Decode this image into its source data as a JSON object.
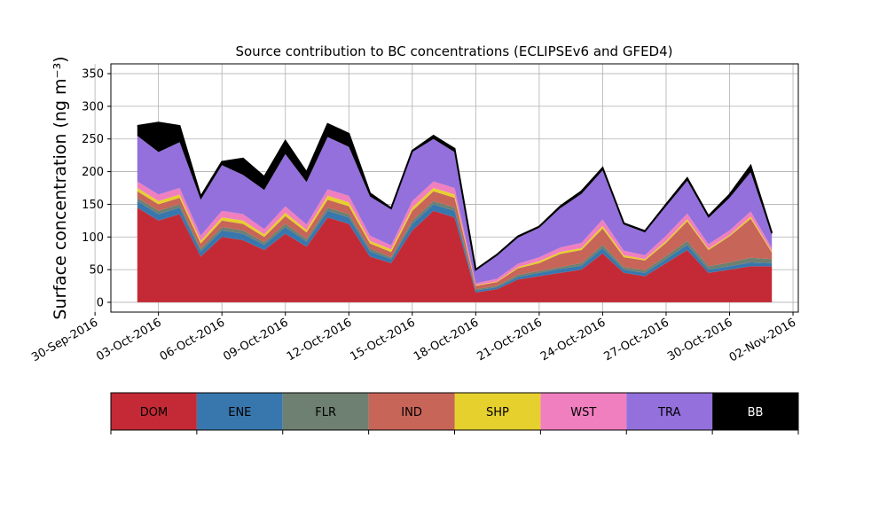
{
  "chart_data": {
    "type": "area",
    "stacked": true,
    "title": "Source contribution to BC concentrations (ECLIPSEv6 and GFED4)",
    "xlabel": "",
    "ylabel": "Surface concentration (ng m⁻³)",
    "ylim": [
      -15,
      365
    ],
    "xlim": [
      "2016-09-30T18:00",
      "2016-11-02T06:00"
    ],
    "yticks": [
      0,
      50,
      100,
      150,
      200,
      250,
      300,
      350
    ],
    "xticks": [
      "30-Sep-2016",
      "03-Oct-2016",
      "06-Oct-2016",
      "09-Oct-2016",
      "12-Oct-2016",
      "15-Oct-2016",
      "18-Oct-2016",
      "21-Oct-2016",
      "24-Oct-2016",
      "27-Oct-2016",
      "30-Oct-2016",
      "02-Nov-2016"
    ],
    "grid": true,
    "x": [
      "2016-10-02",
      "2016-10-03",
      "2016-10-04",
      "2016-10-05",
      "2016-10-06",
      "2016-10-07",
      "2016-10-08",
      "2016-10-09",
      "2016-10-10",
      "2016-10-11",
      "2016-10-12",
      "2016-10-13",
      "2016-10-14",
      "2016-10-15",
      "2016-10-16",
      "2016-10-17",
      "2016-10-18",
      "2016-10-19",
      "2016-10-20",
      "2016-10-21",
      "2016-10-22",
      "2016-10-23",
      "2016-10-24",
      "2016-10-25",
      "2016-10-26",
      "2016-10-27",
      "2016-10-28",
      "2016-10-29",
      "2016-10-30",
      "2016-10-31",
      "2016-11-01"
    ],
    "series": [
      {
        "name": "DOM",
        "color": "#c42a35",
        "values": [
          145,
          125,
          135,
          70,
          100,
          95,
          80,
          105,
          85,
          130,
          120,
          70,
          60,
          110,
          140,
          130,
          15,
          20,
          35,
          40,
          45,
          50,
          75,
          45,
          40,
          60,
          80,
          45,
          50,
          55,
          55
        ]
      },
      {
        "name": "ENE",
        "color": "#3877ad",
        "values": [
          10,
          10,
          10,
          8,
          10,
          10,
          8,
          10,
          8,
          10,
          10,
          8,
          6,
          10,
          10,
          10,
          3,
          3,
          4,
          5,
          6,
          6,
          8,
          5,
          5,
          6,
          8,
          5,
          5,
          6,
          5
        ]
      },
      {
        "name": "FLR",
        "color": "#6e8071",
        "values": [
          5,
          5,
          5,
          4,
          5,
          5,
          4,
          5,
          4,
          5,
          5,
          4,
          3,
          5,
          5,
          5,
          2,
          2,
          3,
          3,
          3,
          4,
          5,
          4,
          4,
          5,
          6,
          5,
          6,
          7,
          6
        ]
      },
      {
        "name": "IND",
        "color": "#c76558",
        "values": [
          10,
          10,
          10,
          8,
          10,
          10,
          8,
          12,
          10,
          12,
          12,
          8,
          8,
          15,
          15,
          15,
          5,
          6,
          10,
          12,
          20,
          20,
          25,
          15,
          15,
          20,
          30,
          25,
          40,
          60,
          10
        ]
      },
      {
        "name": "SHP",
        "color": "#e6d02e",
        "values": [
          5,
          5,
          5,
          4,
          5,
          5,
          4,
          5,
          4,
          6,
          6,
          4,
          4,
          5,
          5,
          5,
          1,
          1,
          2,
          3,
          3,
          3,
          4,
          3,
          2,
          3,
          3,
          2,
          2,
          3,
          2
        ]
      },
      {
        "name": "WST",
        "color": "#f07fbf",
        "values": [
          10,
          10,
          10,
          8,
          10,
          10,
          8,
          10,
          8,
          10,
          10,
          8,
          6,
          10,
          10,
          10,
          3,
          4,
          5,
          6,
          7,
          8,
          10,
          7,
          6,
          8,
          9,
          7,
          7,
          8,
          5
        ]
      },
      {
        "name": "TRA",
        "color": "#9370db",
        "values": [
          70,
          65,
          70,
          55,
          70,
          60,
          60,
          80,
          65,
          80,
          75,
          60,
          55,
          75,
          65,
          55,
          20,
          35,
          40,
          45,
          60,
          75,
          75,
          40,
          35,
          45,
          50,
          40,
          50,
          60,
          20
        ]
      },
      {
        "name": "BB",
        "color": "#000000",
        "values": [
          15,
          45,
          25,
          5,
          5,
          25,
          20,
          20,
          15,
          20,
          20,
          5,
          2,
          2,
          5,
          5,
          1,
          2,
          2,
          2,
          3,
          4,
          4,
          2,
          2,
          3,
          4,
          3,
          5,
          10,
          3
        ]
      }
    ]
  },
  "legend_labels": [
    "DOM",
    "ENE",
    "FLR",
    "IND",
    "SHP",
    "WST",
    "TRA",
    "BB"
  ]
}
